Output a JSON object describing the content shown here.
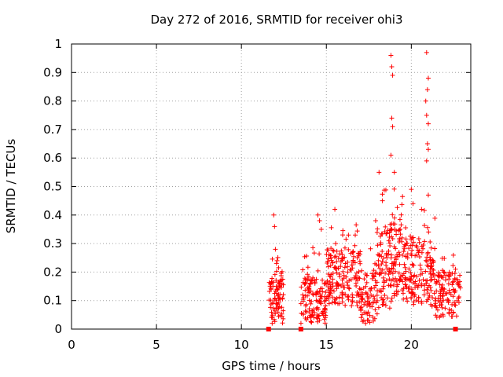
{
  "chart_data": {
    "type": "scatter",
    "title": "Day 272 of 2016, SRMTID for receiver ohi3",
    "xlabel": "GPS time / hours",
    "ylabel": "SRMTID / TECUs",
    "xlim": [
      0,
      23.5
    ],
    "ylim": [
      0,
      1
    ],
    "x_ticks": [
      "0",
      "5",
      "10",
      "15",
      "20"
    ],
    "y_ticks": [
      "0",
      "0.1",
      "0.2",
      "0.3",
      "0.4",
      "0.5",
      "0.6",
      "0.7",
      "0.8",
      "0.9",
      "1"
    ],
    "grid": true,
    "marker_color": "#ff0000",
    "series": [
      {
        "name": "SRMTID",
        "marker": "plus",
        "clusters": [
          {
            "x_range": [
              11.6,
              12.5
            ],
            "y_base": 0.1,
            "y_spread": 0.08,
            "count": 90,
            "peaks": [
              [
                11.9,
                0.4
              ],
              [
                11.95,
                0.36
              ],
              [
                12.0,
                0.28
              ],
              [
                12.1,
                0.24
              ]
            ]
          },
          {
            "x_range": [
              13.5,
              15.0
            ],
            "y_base": 0.1,
            "y_spread": 0.08,
            "count": 130,
            "peaks": [
              [
                14.5,
                0.4
              ],
              [
                14.6,
                0.38
              ],
              [
                14.7,
                0.35
              ]
            ]
          },
          {
            "x_range": [
              15.0,
              17.0
            ],
            "y_base": 0.18,
            "y_spread": 0.1,
            "count": 170,
            "peaks": [
              [
                15.5,
                0.42
              ],
              [
                16.3,
                0.33
              ],
              [
                16.7,
                0.33
              ]
            ]
          },
          {
            "x_range": [
              17.0,
              18.0
            ],
            "y_base": 0.12,
            "y_spread": 0.1,
            "count": 80,
            "peaks": [
              [
                17.2,
                0.03
              ],
              [
                17.9,
                0.38
              ]
            ]
          },
          {
            "x_range": [
              18.0,
              19.6
            ],
            "y_base": 0.22,
            "y_spread": 0.15,
            "count": 160,
            "peaks": [
              [
                18.8,
                0.96
              ],
              [
                18.85,
                0.92
              ],
              [
                18.9,
                0.89
              ],
              [
                18.85,
                0.74
              ],
              [
                18.9,
                0.71
              ],
              [
                18.8,
                0.61
              ],
              [
                19.0,
                0.55
              ],
              [
                18.1,
                0.55
              ],
              [
                18.3,
                0.45
              ]
            ]
          },
          {
            "x_range": [
              19.6,
              21.4
            ],
            "y_base": 0.2,
            "y_spread": 0.12,
            "count": 160,
            "peaks": [
              [
                20.9,
                0.97
              ],
              [
                21.0,
                0.88
              ],
              [
                20.95,
                0.84
              ],
              [
                20.85,
                0.8
              ],
              [
                20.9,
                0.75
              ],
              [
                21.0,
                0.72
              ],
              [
                20.95,
                0.65
              ],
              [
                21.0,
                0.63
              ],
              [
                20.9,
                0.59
              ],
              [
                21.0,
                0.47
              ],
              [
                20.0,
                0.49
              ],
              [
                20.1,
                0.44
              ],
              [
                20.6,
                0.42
              ]
            ]
          },
          {
            "x_range": [
              21.4,
              22.9
            ],
            "y_base": 0.12,
            "y_spread": 0.08,
            "count": 110,
            "peaks": [
              [
                22.6,
                0.21
              ],
              [
                21.9,
                0.2
              ]
            ]
          }
        ]
      }
    ],
    "zero_markers": [
      11.6,
      13.5,
      22.6
    ]
  }
}
